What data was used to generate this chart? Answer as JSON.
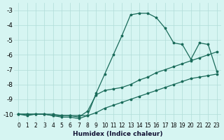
{
  "xlabel": "Humidex (Indice chaleur)",
  "background_color": "#d6f5f2",
  "grid_color": "#b0dcd8",
  "line_color": "#1a6b5a",
  "xlim": [
    -0.5,
    23.5
  ],
  "ylim": [
    -10.5,
    -2.5
  ],
  "xticks": [
    0,
    1,
    2,
    3,
    4,
    5,
    6,
    7,
    8,
    9,
    10,
    11,
    12,
    13,
    14,
    15,
    16,
    17,
    18,
    19,
    20,
    21,
    22,
    23
  ],
  "yticks": [
    -3,
    -4,
    -5,
    -6,
    -7,
    -8,
    -9,
    -10
  ],
  "x": [
    0,
    1,
    2,
    3,
    4,
    5,
    6,
    7,
    8,
    9,
    10,
    11,
    12,
    13,
    14,
    15,
    16,
    17,
    18,
    19,
    20,
    21,
    22,
    23
  ],
  "line1": [
    -10.0,
    -10.1,
    -10.0,
    -10.0,
    -10.1,
    -10.2,
    -10.2,
    -10.3,
    -10.1,
    -8.6,
    -7.3,
    -6.0,
    -4.7,
    -3.3,
    -3.2,
    -3.2,
    -3.5,
    -4.2,
    -5.2,
    -5.3,
    -6.3,
    -5.2,
    -5.3,
    -7.1
  ],
  "line2": [
    -10.0,
    -10.0,
    -10.0,
    -10.0,
    -10.0,
    -10.1,
    -10.1,
    -10.2,
    -9.8,
    -8.7,
    -8.4,
    -8.3,
    -8.2,
    -8.0,
    -7.7,
    -7.5,
    -7.2,
    -7.0,
    -6.8,
    -6.6,
    -6.4,
    -6.2,
    -6.0,
    -5.8
  ],
  "line3": [
    -10.0,
    -10.0,
    -10.0,
    -10.0,
    -10.1,
    -10.1,
    -10.1,
    -10.1,
    -10.1,
    -9.9,
    -9.6,
    -9.4,
    -9.2,
    -9.0,
    -8.8,
    -8.6,
    -8.4,
    -8.2,
    -8.0,
    -7.8,
    -7.6,
    -7.5,
    -7.4,
    -7.3
  ]
}
